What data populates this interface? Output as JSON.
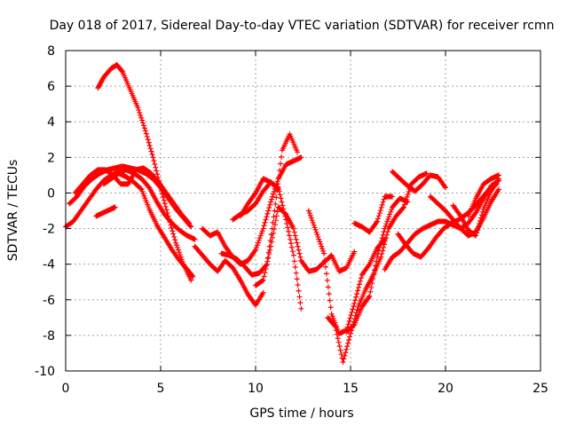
{
  "chart_data": {
    "type": "scatter",
    "title": "Day 018 of 2017, Sidereal Day-to-day VTEC variation (SDTVAR) for receiver rcmn",
    "xlabel": "GPS time / hours",
    "ylabel": "SDTVAR / TECUs",
    "xlim": [
      0,
      25
    ],
    "ylim": [
      -10,
      8
    ],
    "x_ticks": [
      "0",
      "5",
      "10",
      "15",
      "20",
      "25"
    ],
    "y_ticks": [
      "-10",
      "-8",
      "-6",
      "-4",
      "-2",
      "0",
      "2",
      "4",
      "6",
      "8"
    ],
    "grid": true,
    "marker": "+",
    "color": "#ff0000",
    "series": [
      {
        "x": [
          1.7,
          2.0,
          2.4,
          2.7,
          3.0,
          3.4,
          3.8,
          4.2,
          4.6,
          5.0,
          5.4,
          5.8,
          6.2,
          6.6
        ],
        "y": [
          5.9,
          6.5,
          7.0,
          7.2,
          6.8,
          5.8,
          4.8,
          3.5,
          2.0,
          0.3,
          -1.3,
          -2.8,
          -4.0,
          -4.9
        ]
      },
      {
        "x": [
          0.0,
          0.4,
          0.8,
          1.2,
          1.6,
          2.0,
          2.4,
          2.8,
          3.2,
          3.6,
          4.0,
          4.4,
          4.8,
          5.2,
          5.6,
          6.0,
          6.4,
          6.8
        ],
        "y": [
          -1.9,
          -1.6,
          -1.0,
          -0.4,
          0.2,
          0.7,
          1.0,
          1.2,
          1.3,
          1.1,
          0.8,
          0.3,
          -0.5,
          -1.2,
          -1.7,
          -2.1,
          -2.4,
          -2.6
        ]
      },
      {
        "x": [
          0.2,
          0.6,
          1.0,
          1.4,
          1.8,
          2.2,
          2.6,
          3.0,
          3.4,
          3.8,
          4.2,
          4.6,
          5.0,
          5.4,
          5.8,
          6.2,
          6.6
        ],
        "y": [
          -0.6,
          -0.2,
          0.4,
          0.8,
          1.1,
          1.3,
          1.4,
          1.5,
          1.4,
          1.3,
          1.1,
          0.8,
          0.3,
          -0.3,
          -0.9,
          -1.4,
          -1.9
        ]
      },
      {
        "x": [
          0.5,
          0.9,
          1.3,
          1.7,
          2.1,
          2.5,
          2.9,
          3.3,
          3.7,
          4.1,
          4.5,
          4.9,
          5.3,
          5.7,
          6.1,
          6.5
        ],
        "y": [
          0.0,
          0.5,
          1.0,
          1.3,
          1.3,
          1.0,
          0.5,
          0.5,
          1.3,
          1.4,
          1.1,
          0.6,
          0.0,
          -0.6,
          -1.2,
          -1.7
        ]
      },
      {
        "x": [
          1.6,
          2.0,
          2.4,
          2.6
        ],
        "y": [
          -1.3,
          -1.1,
          -0.9,
          -0.8
        ]
      },
      {
        "x": [
          2.0,
          2.4,
          2.8,
          3.2,
          3.6,
          4.0,
          4.4,
          4.8,
          5.2,
          5.6,
          6.0,
          6.4,
          6.7
        ],
        "y": [
          0.5,
          0.8,
          1.1,
          0.9,
          0.6,
          0.2,
          -0.9,
          -1.8,
          -2.5,
          -3.2,
          -3.8,
          -4.3,
          -4.7
        ]
      },
      {
        "x": [
          6.8,
          7.2,
          7.6,
          8.0,
          8.4,
          8.8,
          9.2,
          9.6,
          10.0,
          10.4
        ],
        "y": [
          -3.0,
          -3.5,
          -4.0,
          -4.4,
          -3.8,
          -4.2,
          -4.9,
          -5.7,
          -6.3,
          -5.6
        ]
      },
      {
        "x": [
          7.2,
          7.6,
          8.0,
          8.4,
          8.8,
          9.2,
          9.6,
          10.0,
          10.4,
          10.8,
          11.2,
          11.6,
          12.0,
          12.4
        ],
        "y": [
          -2.0,
          -2.4,
          -2.2,
          -3.0,
          -3.6,
          -4.0,
          -3.8,
          -3.2,
          -2.0,
          -0.5,
          0.8,
          1.6,
          1.8,
          2.0
        ]
      },
      {
        "x": [
          8.2,
          8.6,
          9.0,
          9.4,
          9.8,
          10.2,
          10.6,
          11.0,
          11.4,
          11.8,
          12.2
        ],
        "y": [
          -3.4,
          -3.5,
          -3.7,
          -4.1,
          -4.6,
          -4.5,
          -4.0,
          -1.0,
          2.4,
          3.3,
          2.3
        ]
      },
      {
        "x": [
          8.8,
          9.2,
          9.6,
          10.0,
          10.4,
          10.8,
          11.2,
          11.6,
          12.0,
          12.4
        ],
        "y": [
          -1.5,
          -1.2,
          -1.0,
          -0.6,
          0.1,
          0.6,
          0.3,
          -1.5,
          -3.5,
          -6.5
        ]
      },
      {
        "x": [
          9.2,
          9.6,
          10.0,
          10.4,
          10.8,
          11.2
        ],
        "y": [
          -1.3,
          -0.6,
          0.0,
          0.8,
          0.6,
          0.2
        ]
      },
      {
        "x": [
          10.0,
          10.4,
          10.8,
          11.2,
          11.6,
          12.0,
          12.4,
          12.8,
          13.2,
          13.6,
          14.0,
          14.4,
          14.8,
          15.2
        ],
        "y": [
          -5.2,
          -4.9,
          -3.0,
          -0.8,
          -1.2,
          -2.0,
          -3.8,
          -4.4,
          -4.3,
          -3.9,
          -3.5,
          -4.4,
          -4.2,
          -3.3
        ]
      },
      {
        "x": [
          12.8,
          13.2,
          13.6,
          14.0,
          14.4,
          14.8,
          15.2,
          15.6,
          16.0,
          16.4,
          16.8
        ],
        "y": [
          -1.0,
          -2.2,
          -3.4,
          -6.8,
          -7.9,
          -7.7,
          -6.2,
          -4.6,
          -4.0,
          -3.1,
          -2.6
        ]
      },
      {
        "x": [
          13.8,
          14.2,
          14.6,
          15.0,
          15.4,
          15.8,
          16.2,
          16.6,
          17.0,
          17.4,
          17.8,
          18.2,
          18.6,
          19.0
        ],
        "y": [
          -7.0,
          -7.5,
          -9.5,
          -7.9,
          -6.4,
          -5.4,
          -4.6,
          -3.6,
          -2.0,
          -1.3,
          -0.8,
          0.5,
          0.9,
          1.1
        ]
      },
      {
        "x": [
          14.8,
          15.2,
          15.6,
          16.0,
          16.4,
          16.8,
          17.2,
          17.6,
          18.0
        ],
        "y": [
          -7.8,
          -7.4,
          -6.4,
          -5.8,
          -3.6,
          -2.0,
          -0.8,
          -0.3,
          -0.5
        ]
      },
      {
        "x": [
          15.2,
          15.6,
          16.0,
          16.4,
          16.8,
          17.2
        ],
        "y": [
          -1.7,
          -1.9,
          -2.2,
          -1.6,
          -0.2,
          -0.2
        ]
      },
      {
        "x": [
          16.8,
          17.2,
          17.6,
          18.0,
          18.4,
          18.8,
          19.2,
          19.6,
          20.0,
          20.4,
          20.8,
          21.2,
          21.6,
          22.0,
          22.4,
          22.8
        ],
        "y": [
          -4.3,
          -3.6,
          -3.3,
          -2.8,
          -2.3,
          -2.0,
          -1.8,
          -1.6,
          -1.6,
          -1.8,
          -2.0,
          -1.7,
          -1.1,
          -0.3,
          0.4,
          0.7
        ]
      },
      {
        "x": [
          17.2,
          17.6,
          18.0,
          18.4,
          18.8,
          19.2,
          19.6,
          20.0
        ],
        "y": [
          1.2,
          0.8,
          0.4,
          0.1,
          0.5,
          1.0,
          0.9,
          0.3
        ]
      },
      {
        "x": [
          17.5,
          17.9,
          18.3,
          18.7,
          19.1,
          19.5,
          19.9,
          20.3,
          20.7,
          21.1,
          21.5,
          21.9,
          22.3,
          22.7
        ],
        "y": [
          -2.3,
          -2.9,
          -3.4,
          -3.6,
          -3.1,
          -2.5,
          -2.0,
          -1.7,
          -1.5,
          -1.2,
          -0.8,
          -0.3,
          0.2,
          0.5
        ]
      },
      {
        "x": [
          19.2,
          19.6,
          20.0,
          20.4,
          20.8,
          21.2,
          21.6,
          22.0,
          22.4,
          22.8
        ],
        "y": [
          -0.2,
          -0.6,
          -1.0,
          -1.5,
          -2.0,
          -2.4,
          -2.2,
          -1.4,
          -0.5,
          0.2
        ]
      },
      {
        "x": [
          20.4,
          20.8,
          21.2,
          21.6,
          22.0,
          22.4,
          22.8
        ],
        "y": [
          -0.7,
          -1.3,
          -2.1,
          -2.4,
          -0.9,
          0.1,
          0.8
        ]
      },
      {
        "x": [
          21.2,
          21.6,
          22.0,
          22.4,
          22.8
        ],
        "y": [
          -1.3,
          -0.3,
          0.5,
          0.8,
          1.0
        ]
      }
    ]
  }
}
